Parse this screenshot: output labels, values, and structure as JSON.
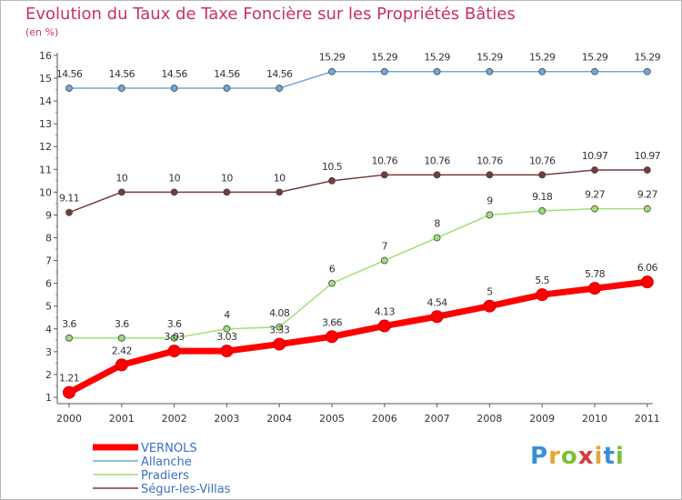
{
  "title": "Evolution du Taux de Taxe Foncière sur les Propriétés Bâties",
  "subtitle": "(en %)",
  "logo": "Proxiti",
  "chart_data": {
    "type": "line",
    "title": "Evolution du Taux de Taxe Foncière sur les Propriétés Bâties",
    "ylabel": "(en %)",
    "xlabel": "",
    "x": [
      "2000",
      "2001",
      "2002",
      "2003",
      "2004",
      "2005",
      "2006",
      "2007",
      "2008",
      "2009",
      "2010",
      "2011"
    ],
    "ylim": [
      1,
      16
    ],
    "yticks": [
      "1",
      "2",
      "3",
      "4",
      "5",
      "6",
      "7",
      "8",
      "9",
      "10",
      "11",
      "12",
      "13",
      "14",
      "15",
      "16"
    ],
    "grid": false,
    "legend_position": "bottom-left",
    "series": [
      {
        "name": "VERNOLS",
        "color": "#ff0000",
        "values": [
          1.21,
          2.42,
          3.03,
          3.03,
          3.33,
          3.66,
          4.13,
          4.54,
          5,
          5.5,
          5.78,
          6.06
        ],
        "labels": [
          "1.21",
          "2.42",
          "3.03",
          "3.03",
          "3.33",
          "3.66",
          "4.13",
          "4.54",
          "5",
          "5.5",
          "5.78",
          "6.06"
        ]
      },
      {
        "name": "Allanche",
        "color": "#6fa8dc",
        "values": [
          14.56,
          14.56,
          14.56,
          14.56,
          14.56,
          15.29,
          15.29,
          15.29,
          15.29,
          15.29,
          15.29,
          15.29
        ],
        "labels": [
          "14.56",
          "14.56",
          "14.56",
          "14.56",
          "14.56",
          "15.29",
          "15.29",
          "15.29",
          "15.29",
          "15.29",
          "15.29",
          "15.29"
        ]
      },
      {
        "name": "Pradiers",
        "color": "#9de07a",
        "values": [
          3.6,
          3.6,
          3.6,
          4,
          4.08,
          6,
          7,
          8,
          9,
          9.18,
          9.27,
          9.27
        ],
        "labels": [
          "3.6",
          "3.6",
          "3.6",
          "4",
          "4.08",
          "6",
          "7",
          "8",
          "9",
          "9.18",
          "9.27",
          "9.27"
        ]
      },
      {
        "name": "Ségur-les-Villas",
        "color": "#7a3a3a",
        "values": [
          9.11,
          10,
          10,
          10,
          10,
          10.5,
          10.76,
          10.76,
          10.76,
          10.76,
          10.97,
          10.97
        ],
        "labels": [
          "9.11",
          "10",
          "10",
          "10",
          "10",
          "10.5",
          "10.76",
          "10.76",
          "10.76",
          "10.76",
          "10.97",
          "10.97"
        ]
      }
    ]
  }
}
